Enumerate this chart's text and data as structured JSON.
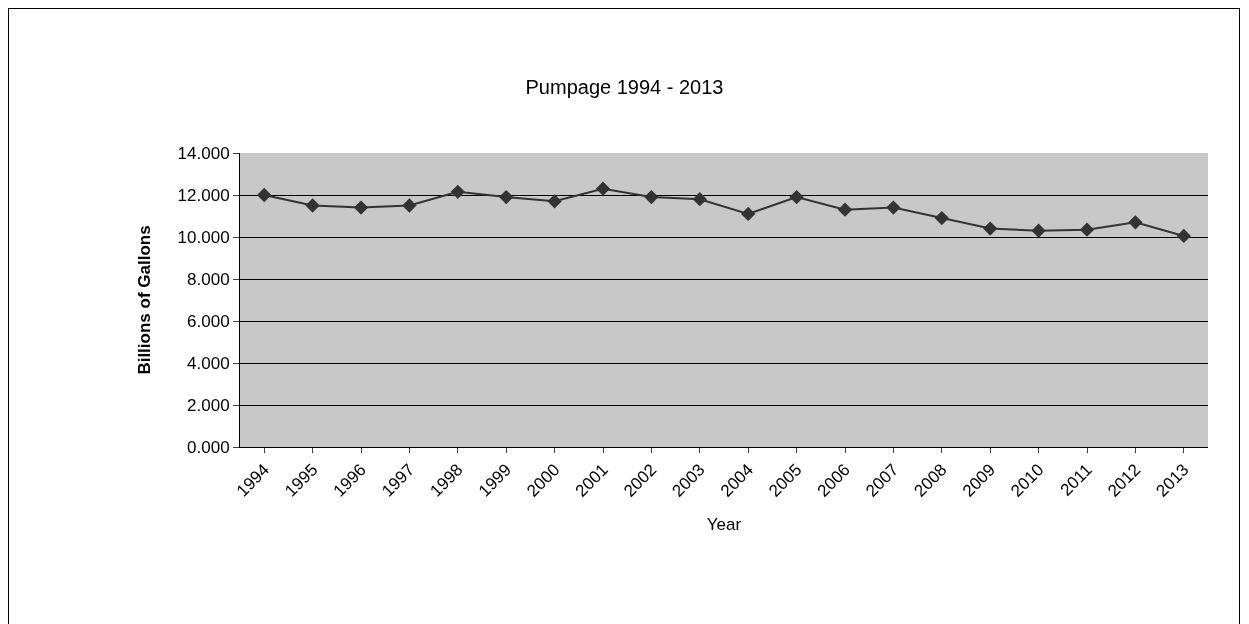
{
  "chart_data": {
    "type": "line",
    "title": "Pumpage 1994 - 2013",
    "xlabel": "Year",
    "ylabel": "Billions of Gallons",
    "categories": [
      "1994",
      "1995",
      "1996",
      "1997",
      "1998",
      "1999",
      "2000",
      "2001",
      "2002",
      "2003",
      "2004",
      "2005",
      "2006",
      "2007",
      "2008",
      "2009",
      "2010",
      "2011",
      "2012",
      "2013"
    ],
    "series": [
      {
        "color": "#333333",
        "values": [
          12.0,
          11.5,
          11.4,
          11.5,
          12.15,
          11.9,
          11.7,
          12.3,
          11.9,
          11.8,
          11.1,
          11.9,
          11.3,
          11.4,
          10.9,
          10.4,
          10.3,
          10.35,
          10.7,
          10.05
        ]
      }
    ],
    "ylim": [
      0,
      14
    ],
    "yticks": [
      {
        "value": 0,
        "label": "0.000"
      },
      {
        "value": 2,
        "label": "2.000"
      },
      {
        "value": 4,
        "label": "4.000"
      },
      {
        "value": 6,
        "label": "6.000"
      },
      {
        "value": 8,
        "label": "8.000"
      },
      {
        "value": 10,
        "label": "10.000"
      },
      {
        "value": 12,
        "label": "12.000"
      },
      {
        "value": 14,
        "label": "14.000"
      }
    ],
    "grid": "y",
    "legend": false,
    "marker": "diamond",
    "line_style": "solid"
  }
}
